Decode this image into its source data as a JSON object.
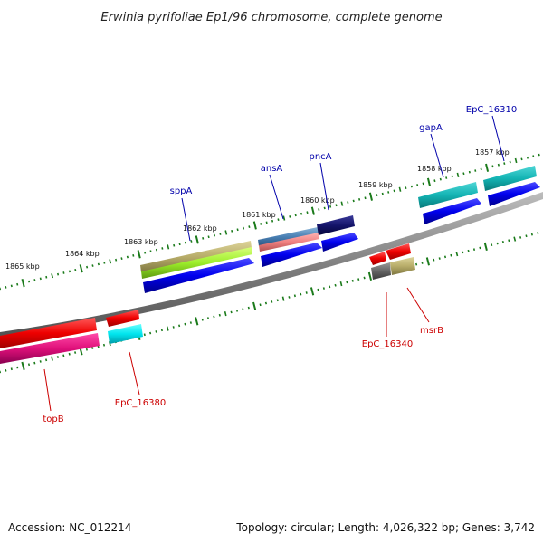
{
  "title": "Erwinia pyrifoliae Ep1/96 chromosome, complete genome",
  "footer": {
    "accession": "Accession: NC_012214",
    "summary": "Topology: circular; Length: 4,026,322 bp; Genes: 3,742"
  },
  "scale_labels": [
    "1865 kbp",
    "1864 kbp",
    "1863 kbp",
    "1862 kbp",
    "1861 kbp",
    "1860 kbp",
    "1859 kbp",
    "1858 kbp",
    "1857 kbp"
  ],
  "genes_forward": [
    {
      "label": "sppA",
      "color": "#0000aa"
    },
    {
      "label": "ansA",
      "color": "#0000aa"
    },
    {
      "label": "pncA",
      "color": "#0000aa"
    },
    {
      "label": "gapA",
      "color": "#0000aa"
    },
    {
      "label": "EpC_16310",
      "color": "#0000aa"
    }
  ],
  "genes_reverse": [
    {
      "label": "topB",
      "color": "#cc0000"
    },
    {
      "label": "EpC_16380",
      "color": "#cc0000"
    },
    {
      "label": "EpC_16340",
      "color": "#cc0000"
    },
    {
      "label": "msrB",
      "color": "#cc0000"
    }
  ],
  "colors": {
    "backbone": "#808080",
    "tick": "#1a7a1a",
    "forward_cds": "#0000ee",
    "reverse_cds": "#ee0000",
    "forward_label": "#0000aa",
    "reverse_label": "#cc0000"
  }
}
